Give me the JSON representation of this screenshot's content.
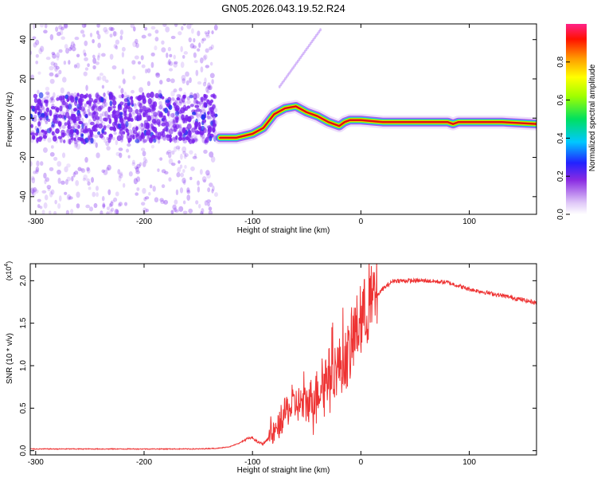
{
  "chart_data": [
    {
      "type": "heatmap",
      "title": "GN05.2026.043.19.52.R24",
      "xlabel": "Height of straight line (km)",
      "ylabel": "Frequency (Hz)",
      "xlim": [
        -305,
        162
      ],
      "ylim": [
        -49,
        48
      ],
      "xticks": [
        -300,
        -200,
        -100,
        0,
        100
      ],
      "xtick_labels": [
        "-300",
        "-200",
        "-100",
        "0",
        "100"
      ],
      "yticks": [
        -40,
        -20,
        0,
        20,
        40
      ],
      "ytick_labels": [
        "-40",
        "-20",
        "0",
        "20",
        "40"
      ],
      "colorbar": {
        "label": "Normalized spectral amplitude",
        "range": [
          0,
          1
        ],
        "ticks": [
          0.0,
          0.2,
          0.4,
          0.6,
          0.8
        ],
        "tick_labels": [
          "0.0",
          "0.2",
          "0.4",
          "0.6",
          "0.8"
        ]
      },
      "trace": {
        "x": [
          -130,
          -115,
          -100,
          -90,
          -80,
          -70,
          -60,
          -50,
          -40,
          -30,
          -20,
          -15,
          -10,
          0,
          20,
          50,
          80,
          85,
          90,
          100,
          130,
          162
        ],
        "y": [
          -10,
          -10,
          -8,
          -5,
          2,
          5,
          6,
          3,
          1,
          -2,
          -4,
          -2,
          -1,
          -1,
          -2,
          -2,
          -2,
          -3,
          -2,
          -2,
          -2,
          -3
        ]
      }
    },
    {
      "type": "line",
      "xlabel": "Height of straight line (km)",
      "ylabel": "SNR (10 * v/v)",
      "y_exponent_label": "(x10",
      "y_exponent": "4",
      "y_exponent_close": ")",
      "xlim": [
        -305,
        162
      ],
      "ylim": [
        -0.05,
        2.2
      ],
      "xticks": [
        -300,
        -200,
        -100,
        0,
        100
      ],
      "xtick_labels": [
        "-300",
        "-200",
        "-100",
        "0",
        "100"
      ],
      "yticks": [
        0.0,
        0.5,
        1.0,
        1.5,
        2.0
      ],
      "ytick_labels": [
        "0.0",
        "0.5",
        "1.0",
        "1.5",
        "2.0"
      ],
      "series": [
        {
          "name": "SNR",
          "color": "#ee3333",
          "x": [
            -305,
            -250,
            -200,
            -150,
            -130,
            -120,
            -112,
            -105,
            -100,
            -95,
            -90,
            -85,
            -80,
            -75,
            -70,
            -60,
            -50,
            -40,
            -30,
            -20,
            -10,
            -5,
            0,
            10,
            20,
            30,
            40,
            60,
            80,
            100,
            120,
            140,
            162
          ],
          "y": [
            0.02,
            0.02,
            0.02,
            0.02,
            0.03,
            0.05,
            0.09,
            0.14,
            0.15,
            0.1,
            0.08,
            0.15,
            0.2,
            0.3,
            0.45,
            0.55,
            0.55,
            0.7,
            0.9,
            1.0,
            1.15,
            1.4,
            1.55,
            1.75,
            1.9,
            2.0,
            2.0,
            2.0,
            1.98,
            1.9,
            1.85,
            1.8,
            1.74
          ]
        }
      ]
    }
  ],
  "colors": {
    "trace_core": "#dd1111",
    "noise": "#7a22ee",
    "axis": "#000000"
  }
}
